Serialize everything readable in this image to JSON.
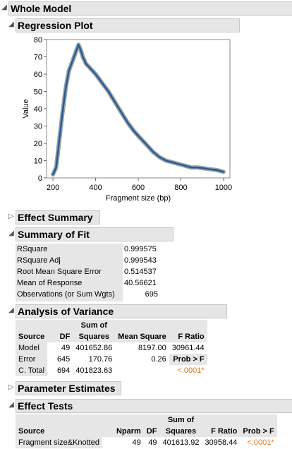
{
  "whole_model": {
    "title": "Whole Model"
  },
  "regression_plot": {
    "title": "Regression Plot"
  },
  "chart_data": {
    "type": "line",
    "xlabel": "Fragment size (bp)",
    "ylabel": "Value",
    "xlim": [
      170,
      1030
    ],
    "ylim": [
      0,
      80
    ],
    "x_ticks": [
      200,
      400,
      600,
      800,
      1000
    ],
    "y_ticks": [
      0,
      10,
      20,
      30,
      40,
      50,
      60,
      70,
      80
    ],
    "grid": false,
    "series": [
      {
        "x": [
          200,
          215,
          230,
          245,
          260,
          275,
          290,
          305,
          320,
          330,
          340,
          355,
          370,
          385,
          400,
          430,
          460,
          490,
          520,
          550,
          580,
          610,
          640,
          670,
          700,
          730,
          760,
          790,
          820,
          850,
          880,
          910,
          940,
          970,
          1000
        ],
        "y": [
          2,
          6,
          22,
          38,
          52,
          62,
          67,
          72,
          77,
          74,
          70,
          66,
          64,
          62,
          60,
          55,
          50,
          44,
          38,
          32,
          27,
          23,
          19,
          15,
          12,
          10,
          9,
          8,
          7,
          6,
          6,
          5.5,
          5,
          4.5,
          3.5
        ]
      }
    ]
  },
  "effect_summary": {
    "title": "Effect Summary"
  },
  "summary_of_fit": {
    "title": "Summary of Fit",
    "rows": [
      {
        "label": "RSquare",
        "value": "0.999575"
      },
      {
        "label": "RSquare Adj",
        "value": "0.999543"
      },
      {
        "label": "Root Mean Square Error",
        "value": "0.514537"
      },
      {
        "label": "Mean of Response",
        "value": "40.56621"
      },
      {
        "label": "Observations (or Sum Wgts)",
        "value": "695"
      }
    ]
  },
  "anova": {
    "title": "Analysis of Variance",
    "headers": {
      "source": "Source",
      "df": "DF",
      "ss_top": "Sum of",
      "ss_bottom": "Squares",
      "ms": "Mean Square",
      "f": "F Ratio"
    },
    "rows": [
      {
        "source": "Model",
        "df": "49",
        "ss": "401652.86",
        "ms": "8197.00",
        "f": "30961.44"
      },
      {
        "source": "Error",
        "df": "645",
        "ss": "170.76",
        "ms": "0.26",
        "f": "Prob > F"
      },
      {
        "source": "C. Total",
        "df": "694",
        "ss": "401823.63",
        "ms": "",
        "f": "<.0001*"
      }
    ]
  },
  "parameter_estimates": {
    "title": "Parameter Estimates"
  },
  "effect_tests": {
    "title": "Effect Tests",
    "headers": {
      "source": "Source",
      "nparm": "Nparm",
      "df": "DF",
      "ss_top": "Sum of",
      "ss_bottom": "Squares",
      "f": "F Ratio",
      "p": "Prob > F"
    },
    "rows": [
      {
        "source": "Fragment size&Knotted",
        "nparm": "49",
        "df": "49",
        "ss": "401613.92",
        "f": "30958.44",
        "p": "<.0001*"
      }
    ]
  }
}
